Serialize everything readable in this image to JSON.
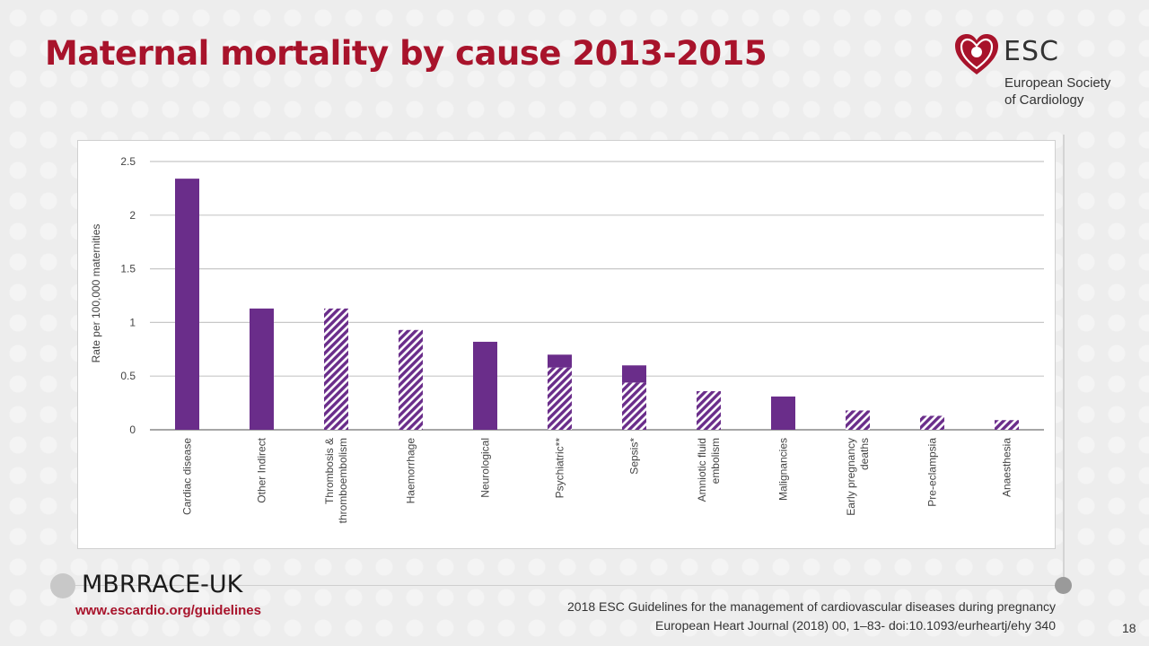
{
  "slide": {
    "title": "Maternal mortality by cause 2013-2015",
    "page_number": "18",
    "accent_color": "#a8132b"
  },
  "logo": {
    "name": "ESC",
    "subtitle_line1": "European Society",
    "subtitle_line2": "of Cardiology",
    "icon": "heart-logo-icon"
  },
  "footer": {
    "source_name": "MBRRACE-UK",
    "website": "www.escardio.org/guidelines",
    "citation_line1": "2018 ESC Guidelines for the management of cardiovascular diseases during pregnancy",
    "citation_line2": "European Heart Journal (2018) 00, 1–83- doi:10.1093/eurheartj/ehy 340"
  },
  "chart_data": {
    "type": "bar",
    "stacked": true,
    "ylabel": "Rate per 100,000 maternities",
    "xlabel": "",
    "ylim": [
      0,
      2.5
    ],
    "yticks": [
      0,
      0.5,
      1,
      1.5,
      2,
      2.5
    ],
    "ytick_labels": [
      "0",
      "0.5",
      "1",
      "1.5",
      "2",
      "2.5"
    ],
    "grid": true,
    "bar_color": "#6a2d8a",
    "categories": [
      [
        "Cardiac disease"
      ],
      [
        "Other Indirect"
      ],
      [
        "Thrombosis &",
        "thromboembolism"
      ],
      [
        "Haemorrhage"
      ],
      [
        "Neurological"
      ],
      [
        "Psychiatric**"
      ],
      [
        "Sepsis*"
      ],
      [
        "Amniotic fluid",
        "embolism"
      ],
      [
        "Malignancies"
      ],
      [
        "Early pregnancy",
        "deaths"
      ],
      [
        "Pre-eclampsia"
      ],
      [
        "Anaesthesia"
      ]
    ],
    "series": [
      {
        "pattern": "hatched",
        "values": [
          0,
          0,
          1.13,
          0.93,
          0,
          0.58,
          0.44,
          0.36,
          0,
          0.18,
          0.13,
          0.09
        ]
      },
      {
        "pattern": "solid",
        "values": [
          2.34,
          1.13,
          0,
          0,
          0.82,
          0.12,
          0.16,
          0,
          0.31,
          0,
          0,
          0
        ]
      }
    ]
  }
}
